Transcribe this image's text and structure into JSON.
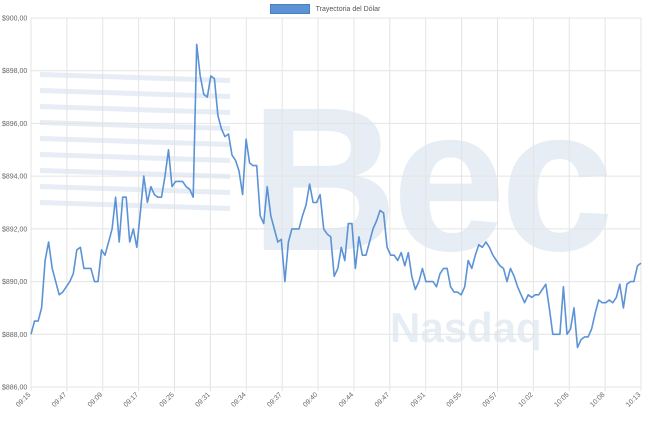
{
  "colors": {
    "line": "#5b93d6",
    "grid": "#e4e4e4",
    "watermark": "#e7edf5",
    "axis_text": "#666666"
  },
  "watermark": {
    "text": "Bec",
    "sub_text": "Nasdaq"
  },
  "chart_data": {
    "type": "line",
    "legend": {
      "label": "Trayectoria del Dólar",
      "position": "top-center"
    },
    "title": "",
    "xlabel": "",
    "ylabel": "",
    "ylim": [
      886,
      900
    ],
    "y_ticks": [
      "$886,00",
      "$888,00",
      "$890,00",
      "$892,00",
      "$894,00",
      "$896,00",
      "$898,00",
      "$900,00"
    ],
    "x_ticks": [
      "09:15",
      "09:47",
      "09:09",
      "09:17",
      "09:25",
      "09:31",
      "09:34",
      "09:37",
      "09:40",
      "09:44",
      "09:47",
      "09:51",
      "09:55",
      "09:57",
      "10:02",
      "10:05",
      "10:08",
      "10:13"
    ],
    "grid": true,
    "series": [
      {
        "name": "Trayectoria del Dólar",
        "values": [
          888.0,
          888.5,
          888.5,
          889.0,
          890.8,
          891.5,
          890.5,
          890.0,
          889.5,
          889.6,
          889.8,
          890.0,
          890.3,
          891.2,
          891.3,
          890.5,
          890.5,
          890.5,
          890.0,
          890.0,
          891.2,
          891.0,
          891.5,
          892.0,
          893.2,
          891.5,
          893.2,
          893.2,
          891.5,
          892.0,
          891.3,
          892.6,
          894.0,
          893.0,
          893.6,
          893.3,
          893.2,
          893.2,
          894.0,
          895.0,
          893.6,
          893.8,
          893.8,
          893.8,
          893.6,
          893.5,
          893.2,
          899.0,
          897.8,
          897.1,
          897.0,
          897.8,
          897.7,
          896.3,
          895.8,
          895.5,
          895.6,
          894.8,
          894.6,
          894.2,
          893.3,
          895.4,
          894.5,
          894.4,
          894.4,
          892.5,
          892.2,
          893.6,
          892.5,
          892.0,
          891.5,
          891.6,
          890.0,
          891.5,
          892.0,
          892.0,
          892.0,
          892.5,
          892.9,
          893.7,
          893.0,
          893.0,
          893.3,
          892.0,
          891.8,
          891.7,
          890.2,
          890.5,
          891.3,
          890.8,
          892.2,
          892.2,
          890.5,
          891.7,
          891.0,
          891.0,
          891.5,
          892.0,
          892.3,
          892.7,
          892.6,
          891.3,
          891.0,
          891.0,
          890.8,
          891.1,
          890.6,
          891.1,
          890.2,
          889.7,
          890.0,
          890.5,
          890.0,
          890.0,
          890.0,
          889.8,
          890.3,
          890.5,
          890.5,
          889.8,
          889.6,
          889.6,
          889.5,
          889.8,
          890.8,
          890.5,
          891.0,
          891.4,
          891.3,
          891.5,
          891.3,
          891.0,
          890.8,
          890.6,
          890.5,
          890.0,
          890.5,
          890.2,
          889.8,
          889.5,
          889.2,
          889.5,
          889.4,
          889.5,
          889.5,
          889.7,
          889.9,
          889.0,
          888.0,
          888.0,
          888.0,
          889.8,
          888.0,
          888.2,
          889.0,
          887.5,
          887.8,
          887.9,
          887.9,
          888.2,
          888.8,
          889.3,
          889.2,
          889.2,
          889.3,
          889.2,
          889.4,
          889.9,
          889.0,
          889.9,
          890.0,
          890.0,
          890.6,
          890.7
        ]
      }
    ]
  }
}
